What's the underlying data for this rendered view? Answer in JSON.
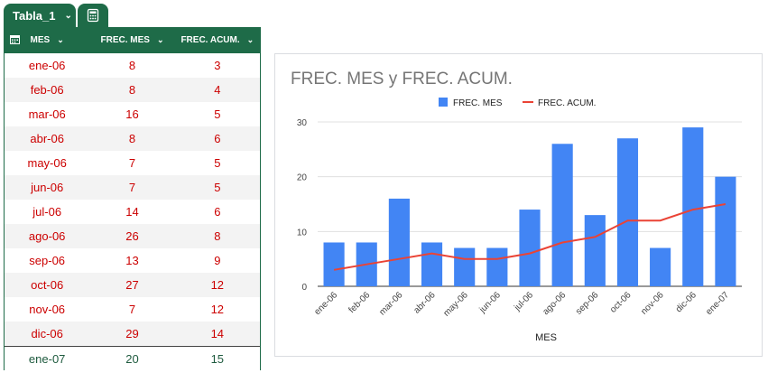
{
  "table": {
    "tab_name": "Tabla_1",
    "headers": [
      "MES",
      "FREC. MES",
      "FREC. ACUM."
    ],
    "rows": [
      [
        "ene-06",
        "8",
        "3"
      ],
      [
        "feb-06",
        "8",
        "4"
      ],
      [
        "mar-06",
        "16",
        "5"
      ],
      [
        "abr-06",
        "8",
        "6"
      ],
      [
        "may-06",
        "7",
        "5"
      ],
      [
        "jun-06",
        "7",
        "5"
      ],
      [
        "jul-06",
        "14",
        "6"
      ],
      [
        "ago-06",
        "26",
        "8"
      ],
      [
        "sep-06",
        "13",
        "9"
      ],
      [
        "oct-06",
        "27",
        "12"
      ],
      [
        "nov-06",
        "7",
        "12"
      ],
      [
        "dic-06",
        "29",
        "14"
      ]
    ],
    "last_row": [
      "ene-07",
      "20",
      "15"
    ]
  },
  "colors": {
    "table_header": "#1e6b48",
    "row_text": "#cc0000",
    "last_row_text": "#1e5a3e",
    "bar": "#4285f4",
    "line": "#ea4335"
  },
  "chart_data": {
    "type": "bar",
    "title": "FREC. MES y FREC. ACUM.",
    "xlabel": "MES",
    "ylabel": "",
    "categories": [
      "ene-06",
      "feb-06",
      "mar-06",
      "abr-06",
      "may-06",
      "jun-06",
      "jul-06",
      "ago-06",
      "sep-06",
      "oct-06",
      "nov-06",
      "dic-06",
      "ene-07"
    ],
    "series": [
      {
        "name": "FREC. MES",
        "type": "bar",
        "values": [
          8,
          8,
          16,
          8,
          7,
          7,
          14,
          26,
          13,
          27,
          7,
          29,
          20
        ]
      },
      {
        "name": "FREC. ACUM.",
        "type": "line",
        "values": [
          3,
          4,
          5,
          6,
          5,
          5,
          6,
          8,
          9,
          12,
          12,
          14,
          15
        ]
      }
    ],
    "ylim": [
      0,
      30
    ],
    "yticks": [
      0,
      10,
      20,
      30
    ],
    "legend": "top",
    "grid": true
  }
}
